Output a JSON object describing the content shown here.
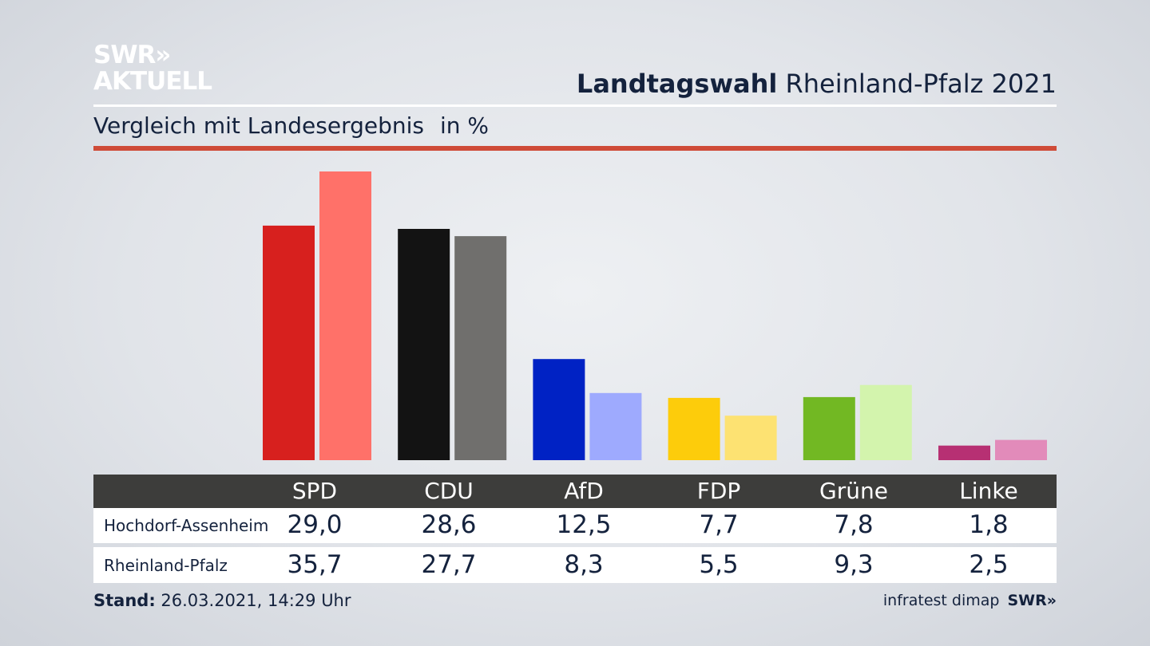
{
  "brand": {
    "logo_line1": "SWR»",
    "logo_line2": "AKTUELL"
  },
  "header": {
    "title_bold": "Landtagswahl",
    "title_rest": "Rheinland-Pfalz 2021"
  },
  "subtitle": {
    "text": "Vergleich mit Landesergebnis",
    "unit": "in %"
  },
  "colors": {
    "accent_rule": "#cf4b38",
    "table_header": "#3d3d3b"
  },
  "chart_data": {
    "type": "bar",
    "title": "Vergleich mit Landesergebnis",
    "ylabel": "in %",
    "ylim": [
      0,
      35.7
    ],
    "categories": [
      "SPD",
      "CDU",
      "AfD",
      "FDP",
      "Grüne",
      "Linke"
    ],
    "series": [
      {
        "name": "Hochdorf-Assenheim",
        "values": [
          29.0,
          28.6,
          12.5,
          7.7,
          7.8,
          1.8
        ],
        "colors": [
          "#d7201e",
          "#131313",
          "#0022c4",
          "#fdcc0b",
          "#72b823",
          "#b73073"
        ]
      },
      {
        "name": "Rheinland-Pfalz",
        "values": [
          35.7,
          27.7,
          8.3,
          5.5,
          9.3,
          2.5
        ],
        "colors": [
          "#ff7169",
          "#706f6d",
          "#9eaafe",
          "#fde272",
          "#d3f4ad",
          "#e28bba"
        ]
      }
    ],
    "table": {
      "headers": [
        "SPD",
        "CDU",
        "AfD",
        "FDP",
        "Grüne",
        "Linke"
      ],
      "rows": [
        {
          "label": "Hochdorf-Assenheim",
          "values": [
            "29,0",
            "28,6",
            "12,5",
            "7,7",
            "7,8",
            "1,8"
          ]
        },
        {
          "label": "Rheinland-Pfalz",
          "values": [
            "35,7",
            "27,7",
            "8,3",
            "5,5",
            "9,3",
            "2,5"
          ]
        }
      ]
    },
    "grid": false,
    "legend": "table-below"
  },
  "footer": {
    "stand_label": "Stand:",
    "stand_value": "26.03.2021, 14:29 Uhr",
    "source": "infratest dimap",
    "source_brand": "SWR»"
  }
}
